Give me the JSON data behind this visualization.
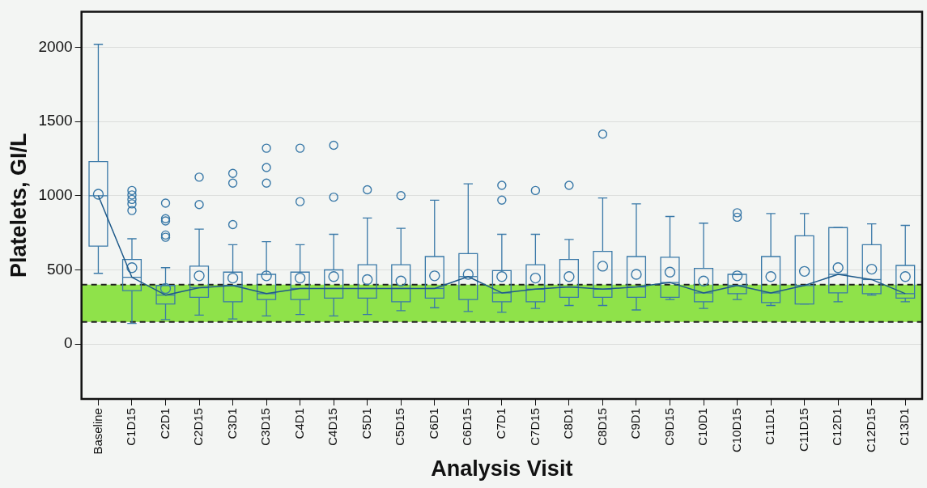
{
  "chart_data": {
    "type": "box",
    "xlabel": "Analysis Visit",
    "ylabel": "Platelets, GI/L",
    "categories": [
      "Baseline",
      "C1D15",
      "C2D1",
      "C2D15",
      "C3D1",
      "C3D15",
      "C4D1",
      "C4D15",
      "C5D1",
      "C5D15",
      "C6D1",
      "C6D15",
      "C7D1",
      "C7D15",
      "C8D1",
      "C8D15",
      "C9D1",
      "C9D15",
      "C10D1",
      "C10D15",
      "C11D1",
      "C11D15",
      "C12D1",
      "C12D15",
      "C13D1"
    ],
    "color": "#3a79a8",
    "boxes": [
      {
        "low": 477,
        "q1": 660,
        "median": 1000,
        "q3": 1230,
        "high": 2020,
        "mean": 1010
      },
      {
        "low": 140,
        "q1": 360,
        "median": 450,
        "q3": 570,
        "high": 710,
        "mean": 515,
        "outliers": [
          1035,
          1005,
          975,
          945,
          900
        ]
      },
      {
        "low": 165,
        "q1": 270,
        "median": 330,
        "q3": 395,
        "high": 515,
        "mean": 375,
        "outliers": [
          950,
          845,
          830,
          735,
          720
        ]
      },
      {
        "low": 195,
        "q1": 315,
        "median": 380,
        "q3": 525,
        "high": 775,
        "mean": 460,
        "outliers": [
          1125,
          940
        ]
      },
      {
        "low": 170,
        "q1": 285,
        "median": 395,
        "q3": 485,
        "high": 670,
        "mean": 445,
        "outliers": [
          1150,
          1085,
          805
        ]
      },
      {
        "low": 190,
        "q1": 300,
        "median": 340,
        "q3": 470,
        "high": 690,
        "mean": 460,
        "outliers": [
          1320,
          1190,
          1085
        ]
      },
      {
        "low": 200,
        "q1": 300,
        "median": 375,
        "q3": 485,
        "high": 670,
        "mean": 445,
        "outliers": [
          1320,
          960
        ]
      },
      {
        "low": 190,
        "q1": 310,
        "median": 375,
        "q3": 500,
        "high": 740,
        "mean": 455,
        "outliers": [
          1340,
          990
        ]
      },
      {
        "low": 200,
        "q1": 310,
        "median": 375,
        "q3": 535,
        "high": 850,
        "mean": 435,
        "outliers": [
          1040
        ]
      },
      {
        "low": 225,
        "q1": 285,
        "median": 375,
        "q3": 535,
        "high": 780,
        "mean": 425,
        "outliers": [
          1000
        ]
      },
      {
        "low": 245,
        "q1": 310,
        "median": 375,
        "q3": 590,
        "high": 970,
        "mean": 460
      },
      {
        "low": 220,
        "q1": 300,
        "median": 455,
        "q3": 610,
        "high": 1080,
        "mean": 470
      },
      {
        "low": 215,
        "q1": 285,
        "median": 345,
        "q3": 495,
        "high": 740,
        "mean": 455,
        "outliers": [
          1070,
          970
        ]
      },
      {
        "low": 240,
        "q1": 285,
        "median": 370,
        "q3": 535,
        "high": 740,
        "mean": 445,
        "outliers": [
          1035
        ]
      },
      {
        "low": 260,
        "q1": 315,
        "median": 385,
        "q3": 570,
        "high": 705,
        "mean": 455,
        "outliers": [
          1070
        ]
      },
      {
        "low": 260,
        "q1": 315,
        "median": 370,
        "q3": 625,
        "high": 985,
        "mean": 525,
        "outliers": [
          1415
        ]
      },
      {
        "low": 230,
        "q1": 315,
        "median": 385,
        "q3": 590,
        "high": 945,
        "mean": 470
      },
      {
        "low": 300,
        "q1": 315,
        "median": 415,
        "q3": 585,
        "high": 860,
        "mean": 485
      },
      {
        "low": 240,
        "q1": 285,
        "median": 345,
        "q3": 510,
        "high": 815,
        "mean": 425
      },
      {
        "low": 300,
        "q1": 340,
        "median": 395,
        "q3": 470,
        "high": 470,
        "mean": 460,
        "outliers": [
          885,
          855
        ]
      },
      {
        "low": 260,
        "q1": 280,
        "median": 345,
        "q3": 590,
        "high": 880,
        "mean": 455
      },
      {
        "low": 270,
        "q1": 270,
        "median": 395,
        "q3": 730,
        "high": 880,
        "mean": 490
      },
      {
        "low": 285,
        "q1": 345,
        "median": 470,
        "q3": 785,
        "high": 785,
        "mean": 515
      },
      {
        "low": 330,
        "q1": 340,
        "median": 435,
        "q3": 670,
        "high": 810,
        "mean": 505
      },
      {
        "low": 285,
        "q1": 310,
        "median": 340,
        "q3": 530,
        "high": 800,
        "mean": 455
      }
    ],
    "series": [
      {
        "type": "line",
        "color": "#1f5a8a",
        "values": [
          1000,
          450,
          330,
          380,
          395,
          340,
          375,
          375,
          375,
          375,
          375,
          455,
          345,
          370,
          385,
          370,
          385,
          415,
          345,
          395,
          345,
          395,
          470,
          435,
          340
        ]
      }
    ],
    "ylim": [
      -370,
      2240
    ],
    "yticks": [
      0,
      500,
      1000,
      1500,
      2000
    ],
    "grid": "y",
    "bands": [
      {
        "axis": "y",
        "from": 150,
        "to": 400,
        "color": "#8fe24a"
      }
    ],
    "ref_lines": [
      {
        "axis": "y",
        "value": 400,
        "line_style": "dashed",
        "color": "#222222"
      },
      {
        "axis": "y",
        "value": 150,
        "line_style": "dashed",
        "color": "#222222"
      }
    ]
  }
}
